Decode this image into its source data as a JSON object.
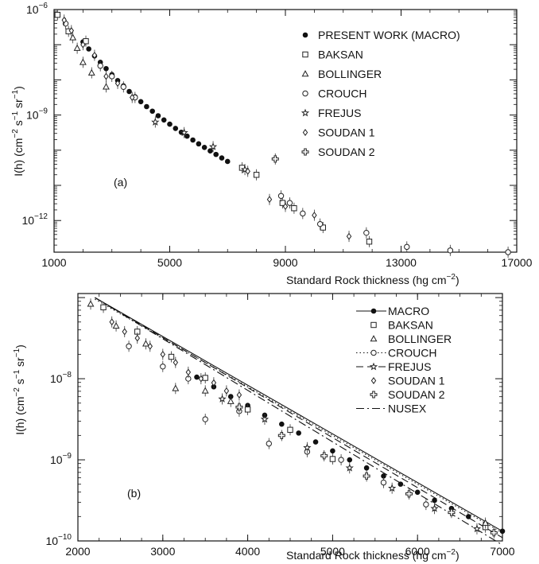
{
  "chart_data": [
    {
      "type": "scatter",
      "panel_label": "(a)",
      "xlabel": "Standard Rock thickness (hg cm",
      "xlabel_exp": "−2",
      "ylabel": "I(h) (cm",
      "ylabel_exp": "−2",
      "ylabel_mid": " s",
      "ylabel_mid_exp": "−1",
      "ylabel_end": " sr",
      "ylabel_end_exp": "−1",
      "ylabel_close": ")",
      "xlim": [
        1000,
        17000
      ],
      "ylim_log10": [
        -12.9,
        -6
      ],
      "x_ticks": [
        "1000",
        "5000",
        "9000",
        "13000",
        "17000"
      ],
      "x_tick_values": [
        1000,
        5000,
        9000,
        13000,
        17000
      ],
      "y_ticks": [
        {
          "exp": -6,
          "base": "10",
          "sup": "−6"
        },
        {
          "exp": -9,
          "base": "10",
          "sup": "−9"
        },
        {
          "exp": -12,
          "base": "10",
          "sup": "−12"
        }
      ],
      "legend_position": "top-right",
      "legend": [
        {
          "name": "PRESENT WORK (MACRO)",
          "marker": "filled-circle"
        },
        {
          "name": "BAKSAN",
          "marker": "square"
        },
        {
          "name": "BOLLINGER",
          "marker": "triangle"
        },
        {
          "name": "CROUCH",
          "marker": "circle"
        },
        {
          "name": "FREJUS",
          "marker": "star"
        },
        {
          "name": "SOUDAN 1",
          "marker": "diamond"
        },
        {
          "name": "SOUDAN 2",
          "marker": "cross"
        }
      ],
      "series": [
        {
          "name": "PRESENT WORK (MACRO)",
          "marker": "filled-circle",
          "x": [
            2000,
            2200,
            2400,
            2600,
            2800,
            3000,
            3200,
            3400,
            3600,
            3800,
            4000,
            4200,
            4400,
            4600,
            4800,
            5000,
            5200,
            5400,
            5600,
            5800,
            6000,
            6200,
            6400,
            6600,
            6800,
            7000
          ],
          "log10y": [
            -6.92,
            -7.12,
            -7.32,
            -7.5,
            -7.68,
            -7.85,
            -8.02,
            -8.17,
            -8.33,
            -8.48,
            -8.62,
            -8.76,
            -8.89,
            -9.02,
            -9.14,
            -9.26,
            -9.38,
            -9.49,
            -9.6,
            -9.71,
            -9.82,
            -9.92,
            -10.02,
            -10.12,
            -10.22,
            -10.32
          ]
        },
        {
          "name": "BAKSAN",
          "marker": "square",
          "x": [
            1120,
            1500,
            2100,
            7500,
            8000,
            8900,
            9300,
            10300,
            11900
          ],
          "log10y": [
            -6.15,
            -6.62,
            -6.9,
            -10.5,
            -10.7,
            -11.5,
            -11.65,
            -12.2,
            -12.6
          ]
        },
        {
          "name": "BOLLINGER",
          "marker": "triangle",
          "x": [
            1650,
            1800,
            2000,
            2300,
            2800
          ],
          "log10y": [
            -6.8,
            -7.1,
            -7.5,
            -7.8,
            -8.2
          ]
        },
        {
          "name": "CROUCH",
          "marker": "circle",
          "x": [
            1400,
            2600,
            3000,
            3400,
            3800,
            8850,
            9150,
            9600,
            10200,
            11800,
            13200,
            14700,
            16700
          ],
          "log10y": [
            -6.4,
            -7.6,
            -7.9,
            -8.2,
            -8.5,
            -11.3,
            -11.5,
            -11.8,
            -12.1,
            -12.35,
            -12.75,
            -12.85,
            -12.9
          ]
        },
        {
          "name": "FREJUS",
          "marker": "star",
          "x": [
            4500,
            5500,
            6500,
            7600
          ],
          "log10y": [
            -9.2,
            -9.5,
            -9.9,
            -10.55
          ]
        },
        {
          "name": "SOUDAN 1",
          "marker": "diamond",
          "x": [
            1350,
            1600,
            2000,
            2400,
            2800,
            3200,
            3700,
            8450,
            9000,
            10000,
            11200,
            7700
          ],
          "log10y": [
            -6.3,
            -6.6,
            -7.0,
            -7.3,
            -7.9,
            -8.1,
            -8.5,
            -11.4,
            -11.6,
            -11.85,
            -12.45,
            -10.6
          ]
        },
        {
          "name": "SOUDAN 2",
          "marker": "cross",
          "x": [
            8650
          ],
          "log10y": [
            -10.25
          ]
        }
      ]
    },
    {
      "type": "scatter",
      "panel_label": "(b)",
      "xlabel": "Standard Rock thickness (hg cm",
      "xlabel_exp": "−2",
      "ylabel": "I(h) (cm",
      "ylabel_exp": "−2",
      "ylabel_mid": " s",
      "ylabel_mid_exp": "−1",
      "ylabel_end": " sr",
      "ylabel_end_exp": "−1",
      "ylabel_close": ")",
      "xlim": [
        2000,
        7000
      ],
      "ylim_log10": [
        -10,
        -6.95
      ],
      "x_ticks": [
        "2000",
        "3000",
        "4000",
        "5000",
        "6000",
        "7000"
      ],
      "x_tick_values": [
        2000,
        3000,
        4000,
        5000,
        6000,
        7000
      ],
      "y_ticks": [
        {
          "exp": -8,
          "base": "10",
          "sup": "−8"
        },
        {
          "exp": -9,
          "base": "10",
          "sup": "−9"
        },
        {
          "exp": -10,
          "base": "10",
          "sup": "−10"
        }
      ],
      "legend_position": "top-right",
      "legend": [
        {
          "name": "MACRO",
          "marker": "filled-circle",
          "line": "solid"
        },
        {
          "name": "BAKSAN",
          "marker": "square",
          "line": "none"
        },
        {
          "name": "BOLLINGER",
          "marker": "triangle",
          "line": "none"
        },
        {
          "name": "CROUCH",
          "marker": "circle",
          "line": "dotted"
        },
        {
          "name": "FREJUS",
          "marker": "star",
          "line": "dashed"
        },
        {
          "name": "SOUDAN 1",
          "marker": "diamond",
          "line": "none"
        },
        {
          "name": "SOUDAN 2",
          "marker": "cross",
          "line": "none"
        },
        {
          "name": "NUSEX",
          "marker": "none",
          "line": "dashdot"
        }
      ],
      "curves": [
        {
          "name": "MACRO",
          "style": "solid",
          "x": [
            2200,
            7000
          ],
          "log10y": [
            -7.0,
            -9.88
          ]
        },
        {
          "name": "CROUCH",
          "style": "dotted",
          "x": [
            2200,
            7000
          ],
          "log10y": [
            -7.02,
            -9.9
          ]
        },
        {
          "name": "FREJUS",
          "style": "dashed",
          "x": [
            2200,
            7000
          ],
          "log10y": [
            -7.0,
            -9.96
          ]
        },
        {
          "name": "NUSEX",
          "style": "dashdot",
          "x": [
            2200,
            7000
          ],
          "log10y": [
            -7.0,
            -10.05
          ]
        }
      ],
      "series": [
        {
          "name": "MACRO",
          "marker": "filled-circle",
          "x": [
            3400,
            3600,
            3800,
            4000,
            4200,
            4400,
            4600,
            4800,
            5000,
            5200,
            5400,
            5600,
            5800,
            6000,
            6200,
            6400,
            6600,
            6800,
            7000
          ],
          "log10y": [
            -7.98,
            -8.1,
            -8.22,
            -8.33,
            -8.45,
            -8.56,
            -8.67,
            -8.78,
            -8.89,
            -9.0,
            -9.1,
            -9.2,
            -9.3,
            -9.4,
            -9.5,
            -9.6,
            -9.7,
            -9.79,
            -9.88
          ]
        },
        {
          "name": "BAKSAN",
          "marker": "square",
          "x": [
            2300,
            2700,
            3100,
            3500,
            4000,
            4500,
            5000,
            6800
          ],
          "log10y": [
            -7.12,
            -7.42,
            -7.73,
            -7.99,
            -8.38,
            -8.63,
            -8.99,
            -9.83
          ]
        },
        {
          "name": "BOLLINGER",
          "marker": "triangle",
          "x": [
            2150,
            2450,
            2800,
            3150,
            3500,
            3800,
            6800
          ],
          "log10y": [
            -7.08,
            -7.35,
            -7.57,
            -8.12,
            -8.15,
            -8.28,
            -9.78
          ]
        },
        {
          "name": "CROUCH",
          "marker": "circle",
          "x": [
            2600,
            3000,
            3300,
            3500,
            3900,
            4250,
            4700,
            5100,
            5600,
            6100
          ],
          "log10y": [
            -7.6,
            -7.85,
            -8.0,
            -8.5,
            -8.4,
            -8.8,
            -8.9,
            -9.0,
            -9.28,
            -9.55
          ]
        },
        {
          "name": "FREJUS",
          "marker": "star",
          "x": [
            3700,
            4200,
            4700,
            5200,
            5700,
            6200,
            6700
          ],
          "log10y": [
            -8.25,
            -8.5,
            -8.85,
            -9.1,
            -9.35,
            -9.6,
            -9.85
          ]
        },
        {
          "name": "SOUDAN 1",
          "marker": "diamond",
          "x": [
            2400,
            2550,
            2700,
            2850,
            3000,
            3150,
            3300,
            3450,
            3600,
            3750,
            3900
          ],
          "log10y": [
            -7.3,
            -7.42,
            -7.5,
            -7.6,
            -7.7,
            -7.8,
            -7.92,
            -8.0,
            -8.05,
            -8.15,
            -8.2
          ]
        },
        {
          "name": "SOUDAN 2",
          "marker": "cross",
          "x": [
            3900,
            4400,
            4900,
            5400,
            5900,
            6400,
            6900
          ],
          "log10y": [
            -8.35,
            -8.7,
            -8.95,
            -9.2,
            -9.42,
            -9.65,
            -9.9
          ]
        },
        {
          "name": "NUSEX",
          "marker": "none",
          "x": [],
          "log10y": []
        }
      ]
    }
  ]
}
